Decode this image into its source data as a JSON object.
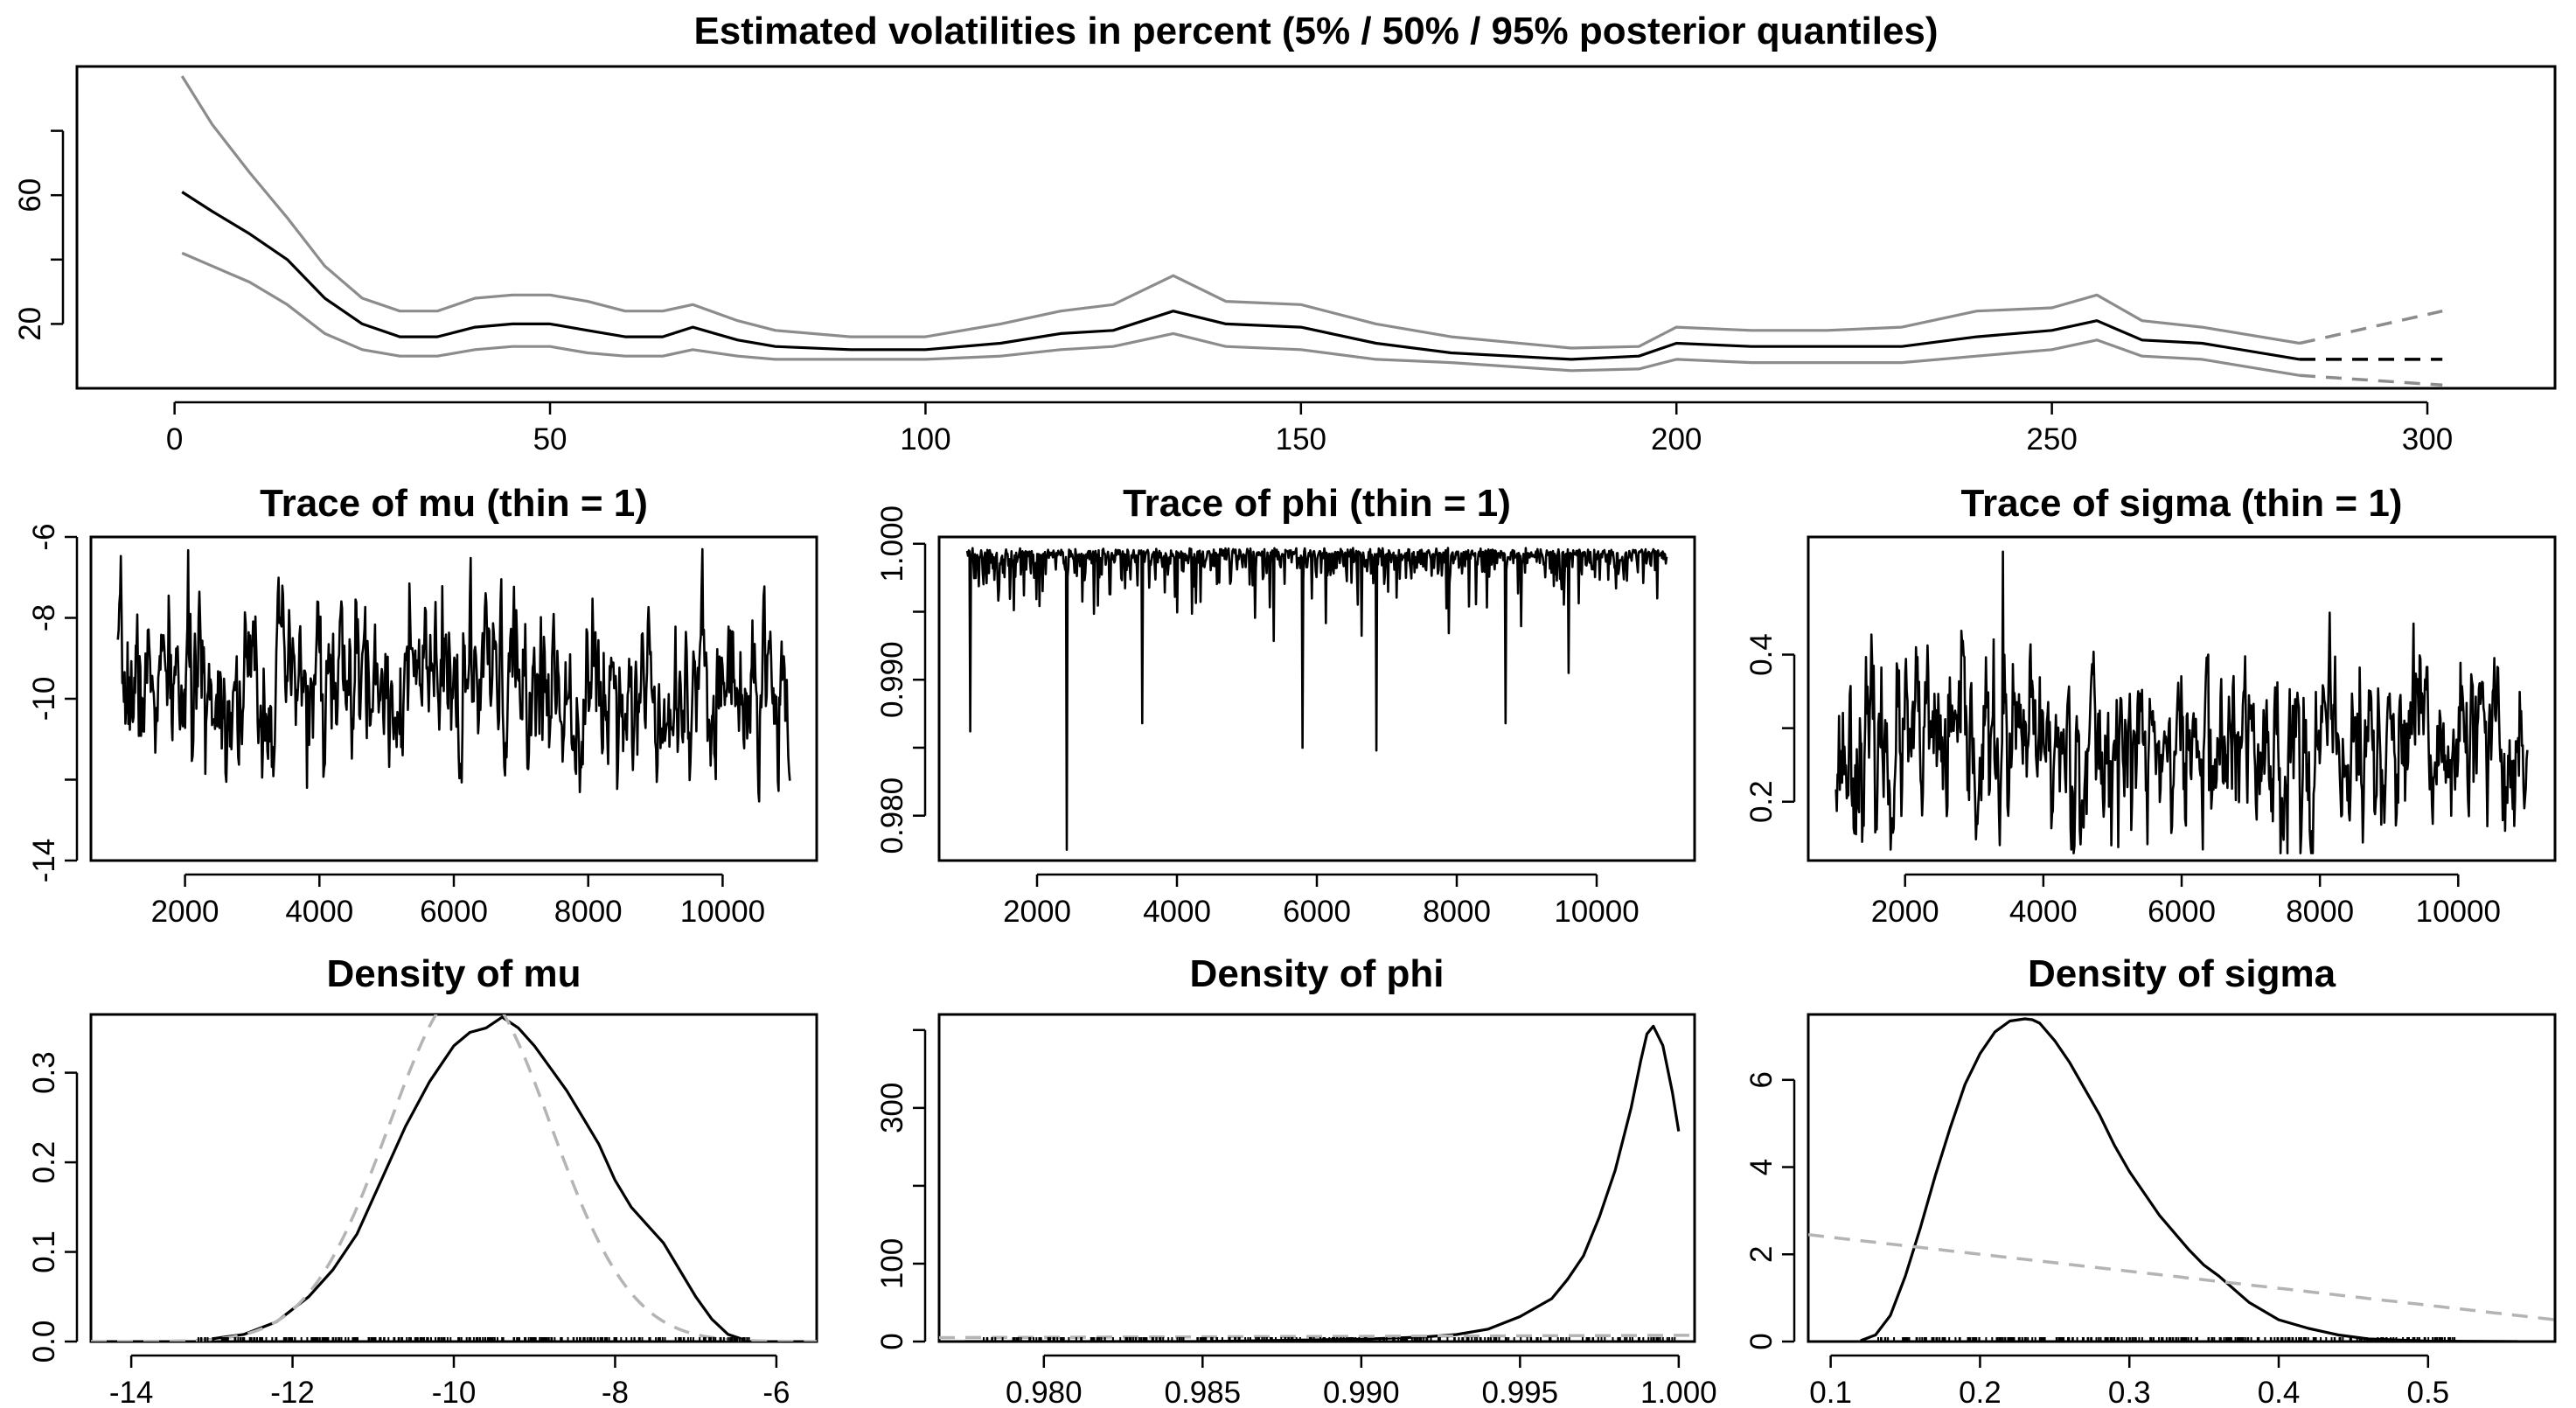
{
  "chart_data": [
    {
      "id": "vol",
      "type": "line",
      "title": "Estimated volatilities in percent (5% / 50% / 95% posterior quantiles)",
      "xlim": [
        -13,
        317
      ],
      "ylim": [
        0,
        100
      ],
      "xticks": [
        0,
        50,
        100,
        150,
        200,
        250,
        300
      ],
      "xtick_labels": [
        "0",
        "50",
        "100",
        "150",
        "200",
        "250",
        "300"
      ],
      "yticks": [
        20,
        60
      ],
      "ytick_labels": [
        "20",
        "60"
      ],
      "ytick_extra": [
        40,
        80
      ],
      "series": [
        {
          "name": "5% quantile",
          "color": "#8c8c8c",
          "x": [
            1,
            5,
            10,
            15,
            20,
            25,
            30,
            35,
            40,
            45,
            50,
            55,
            60,
            65,
            69,
            75,
            80,
            90,
            100,
            110,
            118,
            125,
            133,
            140,
            150,
            160,
            170,
            186,
            195,
            200,
            210,
            220,
            230,
            240,
            250,
            256,
            262,
            270,
            283
          ],
          "y": [
            42,
            38,
            33,
            26,
            17,
            12,
            10,
            10,
            12,
            13,
            13,
            11,
            10,
            10,
            12,
            10,
            9,
            9,
            9,
            10,
            12,
            13,
            17,
            13,
            12,
            9,
            8,
            5.5,
            6,
            9,
            8,
            8,
            8,
            10,
            12,
            15,
            10,
            9,
            4
          ]
        },
        {
          "name": "50% quantile",
          "color": "#000000",
          "x": [
            1,
            5,
            10,
            15,
            20,
            25,
            30,
            35,
            40,
            45,
            50,
            55,
            60,
            65,
            69,
            75,
            80,
            90,
            100,
            110,
            118,
            125,
            133,
            140,
            150,
            160,
            170,
            186,
            195,
            200,
            210,
            220,
            230,
            240,
            250,
            256,
            262,
            270,
            283
          ],
          "y": [
            61,
            55,
            48,
            40,
            28,
            20,
            16,
            16,
            19,
            20,
            20,
            18,
            16,
            16,
            19,
            15,
            13,
            12,
            12,
            14,
            17,
            18,
            24,
            20,
            19,
            14,
            11,
            9,
            10,
            14,
            13,
            13,
            13,
            16,
            18,
            21,
            15,
            14,
            9
          ]
        },
        {
          "name": "95% quantile",
          "color": "#8c8c8c",
          "x": [
            1,
            5,
            10,
            15,
            20,
            25,
            30,
            35,
            40,
            45,
            50,
            55,
            60,
            65,
            69,
            75,
            80,
            90,
            100,
            110,
            118,
            125,
            133,
            140,
            150,
            160,
            170,
            186,
            195,
            200,
            210,
            220,
            230,
            240,
            250,
            256,
            262,
            270,
            283
          ],
          "y": [
            97,
            82,
            67,
            53,
            38,
            28,
            24,
            24,
            28,
            29,
            29,
            27,
            24,
            24,
            26,
            21,
            18,
            16,
            16,
            20,
            24,
            26,
            35,
            27,
            26,
            20,
            16,
            12.5,
            13,
            19,
            18,
            18,
            19,
            24,
            25,
            29,
            21,
            19,
            14
          ]
        },
        {
          "name": "95% forecast",
          "color": "#8c8c8c",
          "dashed": true,
          "x": [
            283,
            302
          ],
          "y": [
            14,
            24
          ]
        },
        {
          "name": "50% forecast",
          "color": "#000000",
          "dashed": true,
          "x": [
            283,
            302
          ],
          "y": [
            9,
            9
          ]
        },
        {
          "name": "5% forecast",
          "color": "#8c8c8c",
          "dashed": true,
          "x": [
            283,
            302
          ],
          "y": [
            4,
            1
          ]
        }
      ]
    },
    {
      "id": "trace_mu",
      "type": "line",
      "title": "Trace of mu (thin = 1)",
      "xlim": [
        600,
        11400
      ],
      "ylim": [
        -14,
        -6
      ],
      "xticks": [
        2000,
        4000,
        6000,
        8000,
        10000
      ],
      "xtick_labels": [
        "2000",
        "4000",
        "6000",
        "8000",
        "10000"
      ],
      "yticks": [
        -14,
        -10,
        -8,
        -6
      ],
      "ytick_labels": [
        "-14",
        "-10",
        "-8",
        "-6"
      ],
      "ytick_extra": [
        -12
      ],
      "trace": {
        "start": 1001,
        "end": 11000,
        "n": 900,
        "mean": -9.7,
        "sd": 1.0,
        "ar": 0.6,
        "clip": [
          -13.8,
          -6.3
        ],
        "seed": 7
      }
    },
    {
      "id": "trace_phi",
      "type": "line",
      "title": "Trace of phi (thin = 1)",
      "xlim": [
        600,
        11400
      ],
      "ylim": [
        0.9767,
        1.0005
      ],
      "xticks": [
        2000,
        4000,
        6000,
        8000,
        10000
      ],
      "xtick_labels": [
        "2000",
        "4000",
        "6000",
        "8000",
        "10000"
      ],
      "yticks": [
        0.98,
        0.99,
        1.0
      ],
      "ytick_labels": [
        "0.980",
        "0.990",
        "1.000"
      ],
      "ytick_extra": [
        0.985,
        0.995
      ],
      "trace": {
        "start": 1001,
        "end": 11000,
        "n": 900,
        "mode": "skew",
        "max": 0.9997,
        "scale": 0.0012,
        "seed": 11
      },
      "spikes": [
        [
          1050,
          0.9862
        ],
        [
          2420,
          0.9775
        ],
        [
          3500,
          0.9868
        ],
        [
          5800,
          0.985
        ],
        [
          6850,
          0.9848
        ],
        [
          8700,
          0.9868
        ],
        [
          9600,
          0.9905
        ]
      ]
    },
    {
      "id": "trace_sigma",
      "type": "line",
      "title": "Trace of sigma (thin = 1)",
      "xlim": [
        600,
        11400
      ],
      "ylim": [
        0.12,
        0.56
      ],
      "xticks": [
        2000,
        4000,
        6000,
        8000,
        10000
      ],
      "xtick_labels": [
        "2000",
        "4000",
        "6000",
        "8000",
        "10000"
      ],
      "yticks": [
        0.2,
        0.4
      ],
      "ytick_labels": [
        "0.2",
        "0.4"
      ],
      "ytick_extra": [
        0.3
      ],
      "trace": {
        "start": 1001,
        "end": 11000,
        "n": 900,
        "mean": 0.27,
        "sd": 0.06,
        "ar": 0.6,
        "clip": [
          0.13,
          0.52
        ],
        "seed": 23
      },
      "spikes": [
        [
          3420,
          0.54
        ]
      ]
    },
    {
      "id": "dens_mu",
      "type": "line",
      "title": "Density of mu",
      "xlim": [
        -14.5,
        -5.5
      ],
      "ylim": [
        0,
        0.365
      ],
      "xticks": [
        -14,
        -12,
        -10,
        -8,
        -6
      ],
      "xtick_labels": [
        "-14",
        "-12",
        "-10",
        "-8",
        "-6"
      ],
      "yticks": [
        0,
        0.1,
        0.2,
        0.3
      ],
      "ytick_labels": [
        "0.0",
        "0.1",
        "0.2",
        "0.3"
      ],
      "series": [
        {
          "name": "posterior density",
          "color": "#000000",
          "x": [
            -13.0,
            -12.6,
            -12.2,
            -11.8,
            -11.5,
            -11.2,
            -10.9,
            -10.6,
            -10.3,
            -10.0,
            -9.8,
            -9.6,
            -9.4,
            -9.2,
            -9.0,
            -8.8,
            -8.6,
            -8.4,
            -8.2,
            -8.0,
            -7.8,
            -7.6,
            -7.4,
            -7.2,
            -7.0,
            -6.8,
            -6.6,
            -6.4
          ],
          "y": [
            0.003,
            0.008,
            0.022,
            0.05,
            0.08,
            0.12,
            0.18,
            0.24,
            0.29,
            0.33,
            0.345,
            0.35,
            0.362,
            0.35,
            0.33,
            0.305,
            0.28,
            0.25,
            0.22,
            0.18,
            0.15,
            0.13,
            0.11,
            0.08,
            0.05,
            0.025,
            0.008,
            0.002
          ]
        },
        {
          "name": "prior density",
          "color": "#b4b4b4",
          "dashed": true,
          "prior": {
            "kind": "normal",
            "mean": -9.8,
            "sd": 1.0
          }
        }
      ],
      "rug": {
        "from": -13.2,
        "to": -6.3
      }
    },
    {
      "id": "dens_phi",
      "type": "line",
      "title": "Density of phi",
      "xlim": [
        0.9767,
        1.0005
      ],
      "ylim": [
        0,
        420
      ],
      "xticks": [
        0.98,
        0.985,
        0.99,
        0.995,
        1.0
      ],
      "xtick_labels": [
        "0.980",
        "0.985",
        "0.990",
        "0.995",
        "1.000"
      ],
      "yticks": [
        0,
        100,
        300
      ],
      "ytick_labels": [
        "0",
        "100",
        "300"
      ],
      "ytick_extra": [
        200,
        400
      ],
      "series": [
        {
          "name": "posterior density",
          "color": "#000000",
          "x": [
            0.9775,
            0.985,
            0.99,
            0.992,
            0.993,
            0.994,
            0.995,
            0.996,
            0.9965,
            0.997,
            0.9975,
            0.998,
            0.9985,
            0.9988,
            0.999,
            0.9992,
            0.9995,
            0.9998,
            1.0
          ],
          "y": [
            0,
            0,
            3,
            6,
            9,
            16,
            32,
            55,
            80,
            110,
            160,
            220,
            300,
            360,
            395,
            405,
            380,
            320,
            270
          ]
        },
        {
          "name": "prior density",
          "color": "#b4b4b4",
          "dashed": true,
          "prior": {
            "kind": "linear",
            "y0": 5,
            "y1": 8
          }
        }
      ],
      "rug": {
        "from": 0.978,
        "to": 1.0
      }
    },
    {
      "id": "dens_sigma",
      "type": "line",
      "title": "Density of sigma",
      "xlim": [
        0.085,
        0.585
      ],
      "ylim": [
        0,
        7.5
      ],
      "xticks": [
        0.1,
        0.2,
        0.3,
        0.4,
        0.5
      ],
      "xtick_labels": [
        "0.1",
        "0.2",
        "0.3",
        "0.4",
        "0.5"
      ],
      "yticks": [
        0,
        2,
        4,
        6
      ],
      "ytick_labels": [
        "0",
        "2",
        "4",
        "6"
      ],
      "series": [
        {
          "name": "posterior density",
          "color": "#000000",
          "x": [
            0.12,
            0.13,
            0.14,
            0.15,
            0.16,
            0.17,
            0.18,
            0.19,
            0.2,
            0.21,
            0.22,
            0.23,
            0.235,
            0.24,
            0.25,
            0.26,
            0.27,
            0.28,
            0.29,
            0.3,
            0.32,
            0.34,
            0.35,
            0.36,
            0.38,
            0.4,
            0.42,
            0.44,
            0.46,
            0.5,
            0.56
          ],
          "y": [
            0.02,
            0.15,
            0.6,
            1.5,
            2.6,
            3.8,
            4.9,
            5.9,
            6.6,
            7.1,
            7.35,
            7.4,
            7.38,
            7.3,
            6.9,
            6.4,
            5.8,
            5.2,
            4.5,
            3.9,
            2.9,
            2.1,
            1.75,
            1.5,
            0.9,
            0.5,
            0.3,
            0.15,
            0.06,
            0.01,
            0
          ]
        },
        {
          "name": "prior density",
          "color": "#b4b4b4",
          "dashed": true,
          "prior": {
            "kind": "linear",
            "y0": 2.45,
            "y1": 0.5
          }
        }
      ],
      "rug": {
        "from": 0.13,
        "to": 0.52
      }
    }
  ]
}
